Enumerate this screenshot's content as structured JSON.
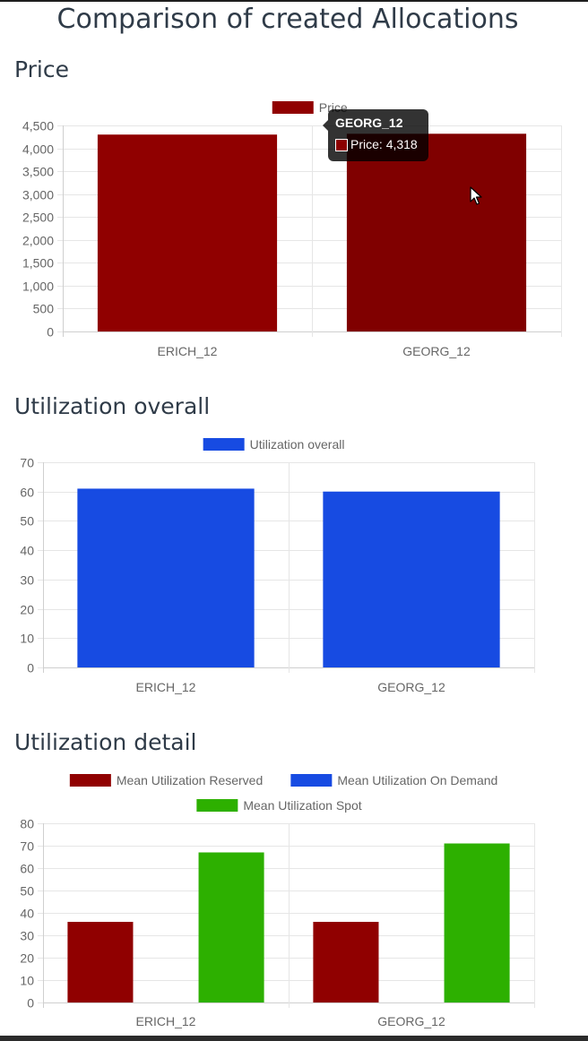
{
  "page_title": "Comparison of created Allocations",
  "sections": {
    "price": {
      "title": "Price"
    },
    "util_overall": {
      "title": "Utilization overall"
    },
    "util_detail": {
      "title": "Utilization detail"
    }
  },
  "tooltip": {
    "title": "GEORG_12",
    "label": "Price",
    "value": "4,318",
    "swatch_color": "#8b0000"
  },
  "cursor_icon": "mouse-pointer-icon",
  "chart_data": [
    {
      "id": "price",
      "type": "bar",
      "categories": [
        "ERICH_12",
        "GEORG_12"
      ],
      "series": [
        {
          "name": "Price",
          "values": [
            4300,
            4318
          ],
          "color": "#900000",
          "hover_color": "#800000"
        }
      ],
      "ylim": [
        0,
        4500
      ],
      "yticks": [
        "0",
        "500",
        "1,000",
        "1,500",
        "2,000",
        "2,500",
        "3,000",
        "3,500",
        "4,000",
        "4,500"
      ],
      "ytick_values": [
        0,
        500,
        1000,
        1500,
        2000,
        2500,
        3000,
        3500,
        4000,
        4500
      ],
      "grid": true,
      "legend": "top"
    },
    {
      "id": "util_overall",
      "type": "bar",
      "categories": [
        "ERICH_12",
        "GEORG_12"
      ],
      "series": [
        {
          "name": "Utilization overall",
          "values": [
            61,
            60
          ],
          "color": "#174be2"
        }
      ],
      "ylim": [
        0,
        70
      ],
      "yticks": [
        "0",
        "10",
        "20",
        "30",
        "40",
        "50",
        "60",
        "70"
      ],
      "ytick_values": [
        0,
        10,
        20,
        30,
        40,
        50,
        60,
        70
      ],
      "grid": true,
      "legend": "top"
    },
    {
      "id": "util_detail",
      "type": "bar",
      "categories": [
        "ERICH_12",
        "GEORG_12"
      ],
      "series": [
        {
          "name": "Mean Utilization Reserved",
          "values": [
            36,
            36
          ],
          "color": "#900000"
        },
        {
          "name": "Mean Utilization On Demand",
          "values": [
            0,
            0
          ],
          "color": "#174be2"
        },
        {
          "name": "Mean Utilization Spot",
          "values": [
            67,
            71
          ],
          "color": "#2db000"
        }
      ],
      "ylim": [
        0,
        80
      ],
      "yticks": [
        "0",
        "10",
        "20",
        "30",
        "40",
        "50",
        "60",
        "70",
        "80"
      ],
      "ytick_values": [
        0,
        10,
        20,
        30,
        40,
        50,
        60,
        70,
        80
      ],
      "grid": true,
      "legend": "top"
    }
  ]
}
